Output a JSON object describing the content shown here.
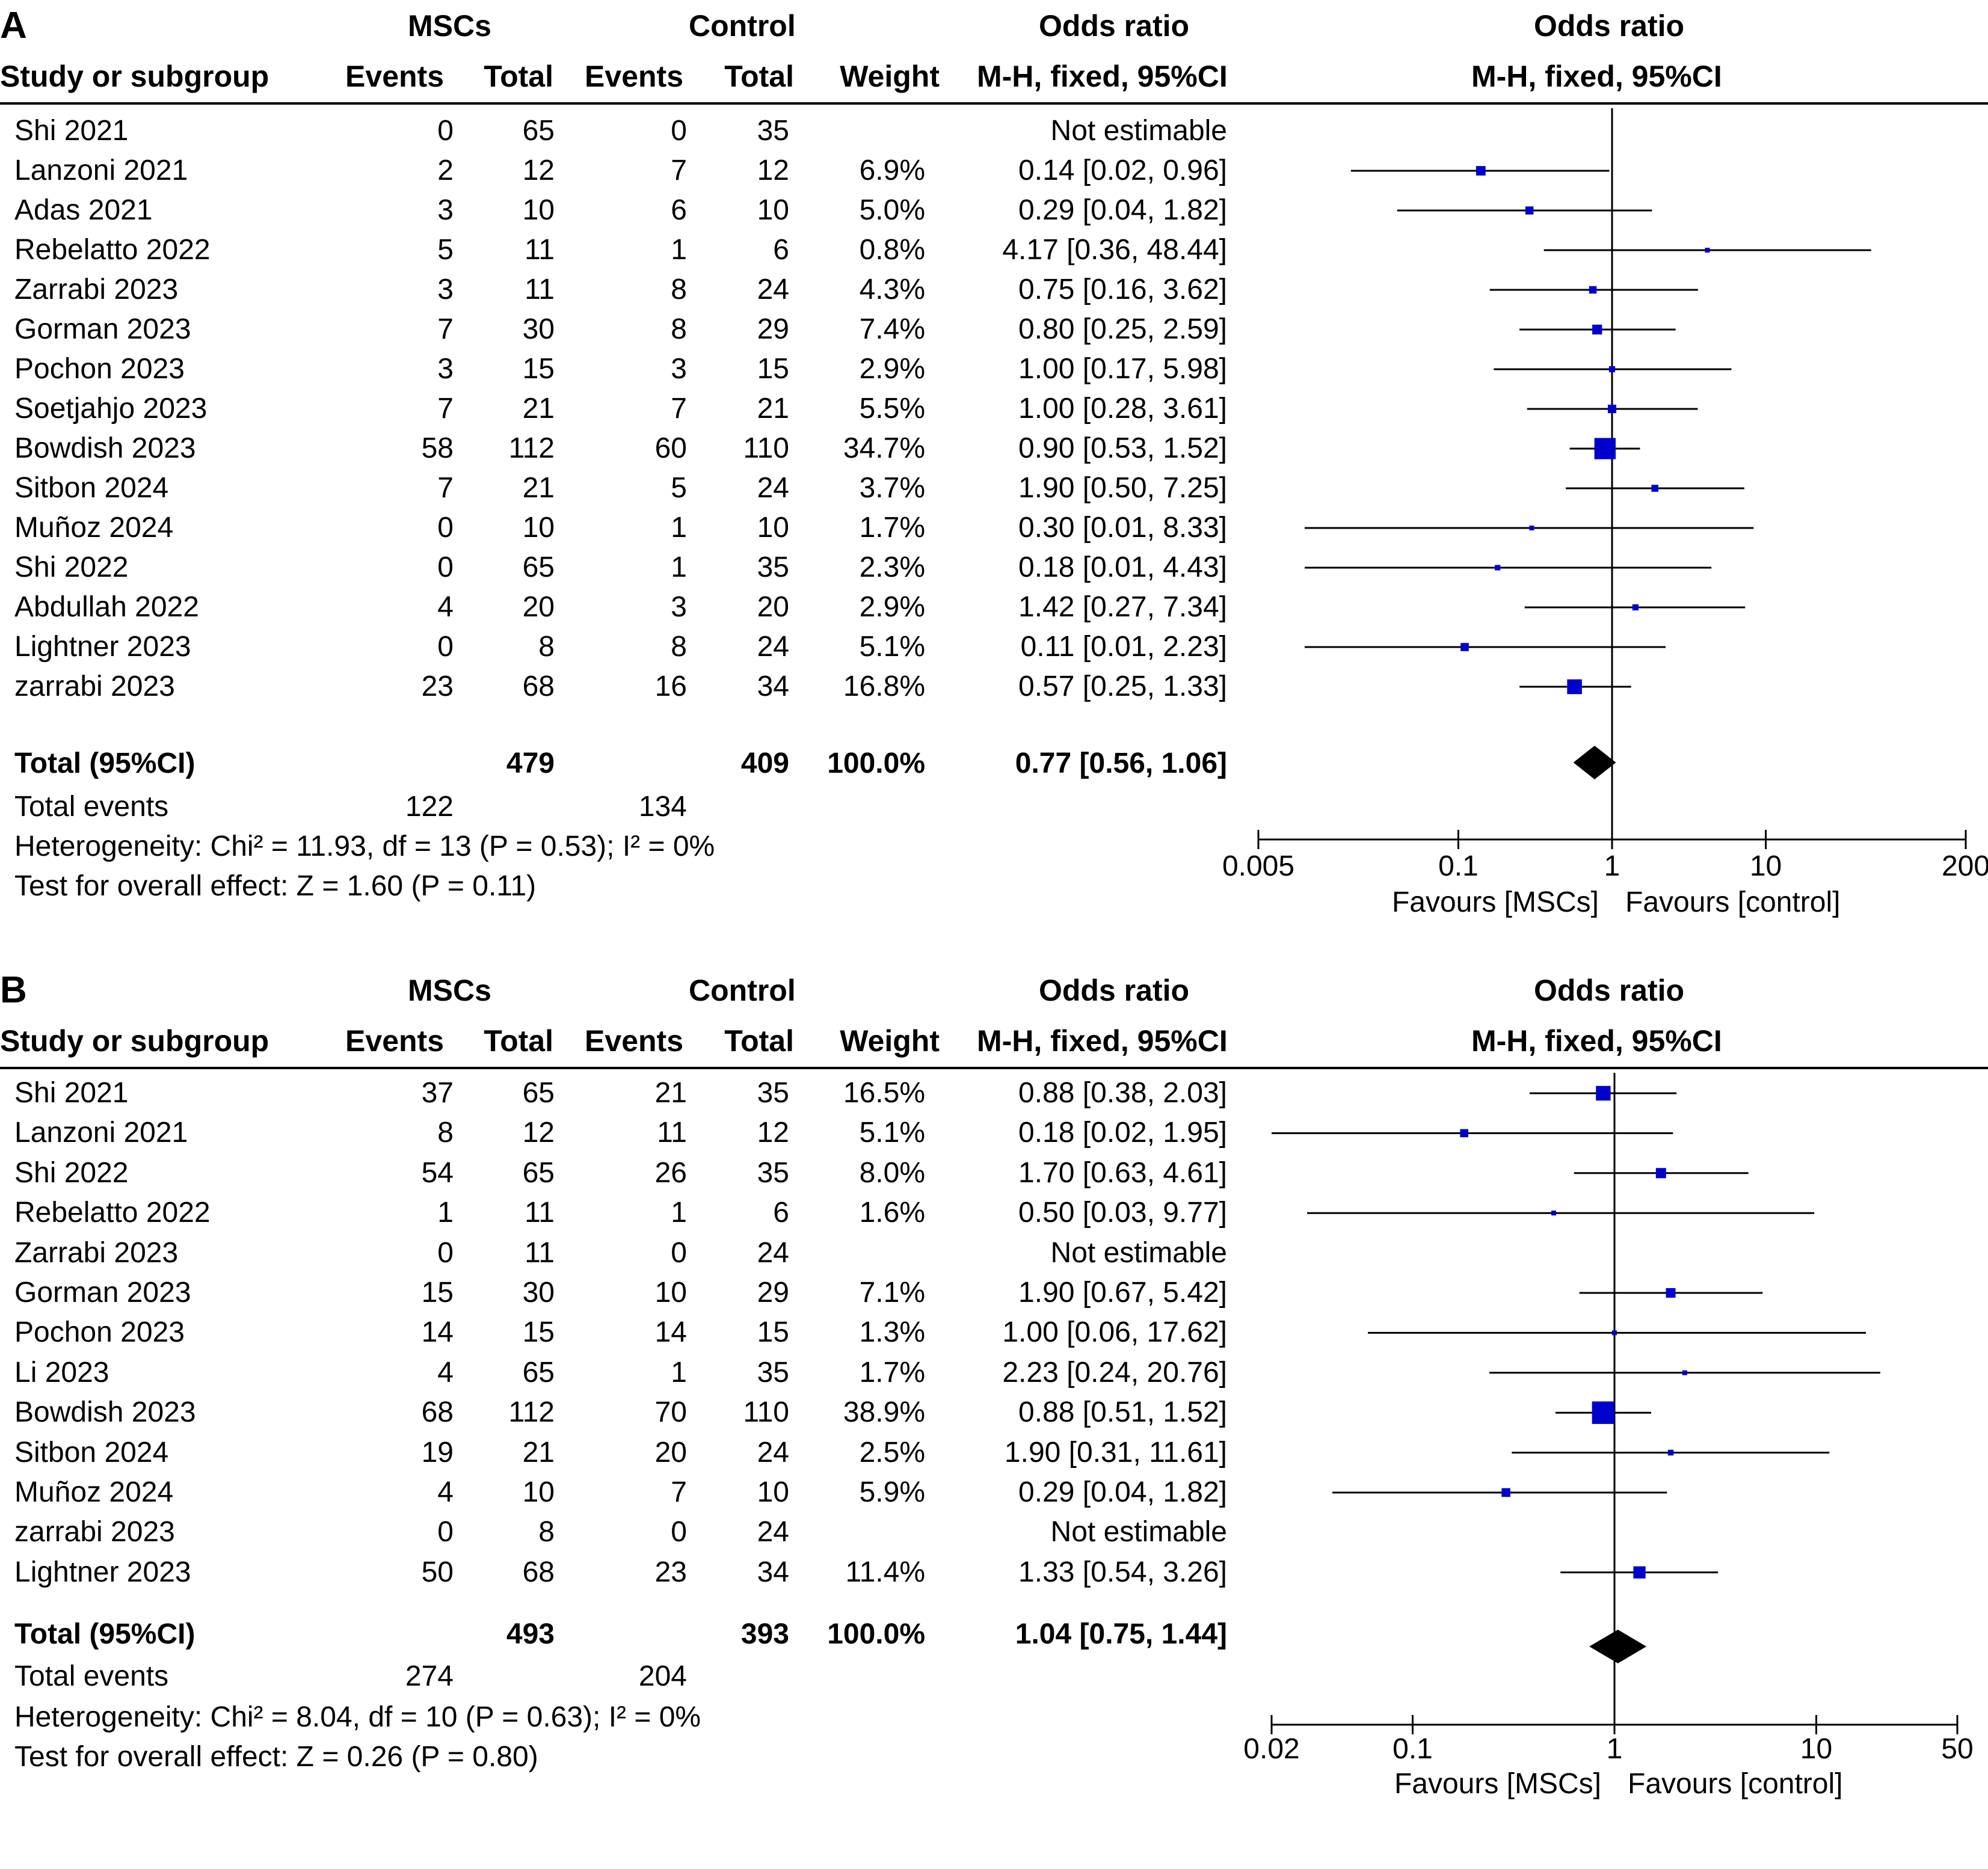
{
  "chart_data": [
    {
      "type": "forest",
      "panel_label": "A",
      "group_headers": {
        "experimental": "MSCs",
        "control": "Control",
        "estimate": "Odds ratio",
        "plot": "Odds ratio"
      },
      "column_headers": {
        "study": "Study or subgroup",
        "exp_events": "Events",
        "exp_total": "Total",
        "ctrl_events": "Events",
        "ctrl_total": "Total",
        "weight": "Weight",
        "estimate": "M-H, fixed, 95%CI",
        "plot": "M-H, fixed, 95%CI"
      },
      "rows": [
        {
          "study": "Shi 2021",
          "e_events": "0",
          "e_total": "65",
          "c_events": "0",
          "c_total": "35",
          "weight": "",
          "ci_text": "Not estimable",
          "or": null,
          "lo": null,
          "hi": null,
          "w": 0
        },
        {
          "study": "Lanzoni 2021",
          "e_events": "2",
          "e_total": "12",
          "c_events": "7",
          "c_total": "12",
          "weight": "6.9%",
          "ci_text": "0.14 [0.02, 0.96]",
          "or": 0.14,
          "lo": 0.02,
          "hi": 0.96,
          "w": 6.9
        },
        {
          "study": "Adas 2021",
          "e_events": "3",
          "e_total": "10",
          "c_events": "6",
          "c_total": "10",
          "weight": "5.0%",
          "ci_text": "0.29 [0.04, 1.82]",
          "or": 0.29,
          "lo": 0.04,
          "hi": 1.82,
          "w": 5.0
        },
        {
          "study": "Rebelatto 2022",
          "e_events": "5",
          "e_total": "11",
          "c_events": "1",
          "c_total": "6",
          "weight": "0.8%",
          "ci_text": "4.17 [0.36, 48.44]",
          "or": 4.17,
          "lo": 0.36,
          "hi": 48.44,
          "w": 0.8
        },
        {
          "study": "Zarrabi 2023",
          "e_events": "3",
          "e_total": "11",
          "c_events": "8",
          "c_total": "24",
          "weight": "4.3%",
          "ci_text": "0.75 [0.16, 3.62]",
          "or": 0.75,
          "lo": 0.16,
          "hi": 3.62,
          "w": 4.3
        },
        {
          "study": "Gorman 2023",
          "e_events": "7",
          "e_total": "30",
          "c_events": "8",
          "c_total": "29",
          "weight": "7.4%",
          "ci_text": "0.80 [0.25, 2.59]",
          "or": 0.8,
          "lo": 0.25,
          "hi": 2.59,
          "w": 7.4
        },
        {
          "study": "Pochon 2023",
          "e_events": "3",
          "e_total": "15",
          "c_events": "3",
          "c_total": "15",
          "weight": "2.9%",
          "ci_text": "1.00 [0.17, 5.98]",
          "or": 1.0,
          "lo": 0.17,
          "hi": 5.98,
          "w": 2.9
        },
        {
          "study": "Soetjahjo 2023",
          "e_events": "7",
          "e_total": "21",
          "c_events": "7",
          "c_total": "21",
          "weight": "5.5%",
          "ci_text": "1.00 [0.28, 3.61]",
          "or": 1.0,
          "lo": 0.28,
          "hi": 3.61,
          "w": 5.5
        },
        {
          "study": "Bowdish 2023",
          "e_events": "58",
          "e_total": "112",
          "c_events": "60",
          "c_total": "110",
          "weight": "34.7%",
          "ci_text": "0.90 [0.53, 1.52]",
          "or": 0.9,
          "lo": 0.53,
          "hi": 1.52,
          "w": 34.7
        },
        {
          "study": "Sitbon 2024",
          "e_events": "7",
          "e_total": "21",
          "c_events": "5",
          "c_total": "24",
          "weight": "3.7%",
          "ci_text": "1.90 [0.50, 7.25]",
          "or": 1.9,
          "lo": 0.5,
          "hi": 7.25,
          "w": 3.7
        },
        {
          "study": "Muñoz 2024",
          "e_events": "0",
          "e_total": "10",
          "c_events": "1",
          "c_total": "10",
          "weight": "1.7%",
          "ci_text": "0.30 [0.01, 8.33]",
          "or": 0.3,
          "lo": 0.01,
          "hi": 8.33,
          "w": 1.7
        },
        {
          "study": "Shi 2022",
          "e_events": "0",
          "e_total": "65",
          "c_events": "1",
          "c_total": "35",
          "weight": "2.3%",
          "ci_text": "0.18 [0.01, 4.43]",
          "or": 0.18,
          "lo": 0.01,
          "hi": 4.43,
          "w": 2.3
        },
        {
          "study": "Abdullah 2022",
          "e_events": "4",
          "e_total": "20",
          "c_events": "3",
          "c_total": "20",
          "weight": "2.9%",
          "ci_text": "1.42 [0.27, 7.34]",
          "or": 1.42,
          "lo": 0.27,
          "hi": 7.34,
          "w": 2.9
        },
        {
          "study": "Lightner 2023",
          "e_events": "0",
          "e_total": "8",
          "c_events": "8",
          "c_total": "24",
          "weight": "5.1%",
          "ci_text": "0.11 [0.01, 2.23]",
          "or": 0.11,
          "lo": 0.01,
          "hi": 2.23,
          "w": 5.1
        },
        {
          "study": "zarrabi 2023",
          "e_events": "23",
          "e_total": "68",
          "c_events": "16",
          "c_total": "34",
          "weight": "16.8%",
          "ci_text": "0.57 [0.25, 1.33]",
          "or": 0.57,
          "lo": 0.25,
          "hi": 1.33,
          "w": 16.8
        }
      ],
      "total": {
        "label": "Total (95%CI)",
        "e_total": "479",
        "c_total": "409",
        "weight": "100.0%",
        "ci_text": "0.77 [0.56, 1.06]",
        "or": 0.77,
        "lo": 0.56,
        "hi": 1.06
      },
      "total_events": {
        "label": "Total events",
        "e": "122",
        "c": "134"
      },
      "heterogeneity": "Heterogeneity: Chi² = 11.93, df = 13 (P = 0.53); I² = 0%",
      "overall_effect": "Test for overall effect: Z = 1.60 (P = 0.11)",
      "axis": {
        "ticks": [
          0.005,
          0.1,
          1,
          10,
          200
        ],
        "tick_labels": [
          "0.005",
          "0.1",
          "1",
          "10",
          "200"
        ],
        "xlim": [
          0.005,
          200
        ],
        "scale": "log"
      },
      "favours_left": "Favours [MSCs]",
      "favours_right": "Favours [control]"
    },
    {
      "type": "forest",
      "panel_label": "B",
      "group_headers": {
        "experimental": "MSCs",
        "control": "Control",
        "estimate": "Odds ratio",
        "plot": "Odds ratio"
      },
      "column_headers": {
        "study": "Study or subgroup",
        "exp_events": "Events",
        "exp_total": "Total",
        "ctrl_events": "Events",
        "ctrl_total": "Total",
        "weight": "Weight",
        "estimate": "M-H, fixed, 95%CI",
        "plot": "M-H, fixed, 95%CI"
      },
      "rows": [
        {
          "study": "Shi 2021",
          "e_events": "37",
          "e_total": "65",
          "c_events": "21",
          "c_total": "35",
          "weight": "16.5%",
          "ci_text": "0.88 [0.38, 2.03]",
          "or": 0.88,
          "lo": 0.38,
          "hi": 2.03,
          "w": 16.5
        },
        {
          "study": "Lanzoni 2021",
          "e_events": "8",
          "e_total": "12",
          "c_events": "11",
          "c_total": "12",
          "weight": "5.1%",
          "ci_text": "0.18 [0.02, 1.95]",
          "or": 0.18,
          "lo": 0.02,
          "hi": 1.95,
          "w": 5.1
        },
        {
          "study": "Shi 2022",
          "e_events": "54",
          "e_total": "65",
          "c_events": "26",
          "c_total": "35",
          "weight": "8.0%",
          "ci_text": "1.70 [0.63, 4.61]",
          "or": 1.7,
          "lo": 0.63,
          "hi": 4.61,
          "w": 8.0
        },
        {
          "study": "Rebelatto 2022",
          "e_events": "1",
          "e_total": "11",
          "c_events": "1",
          "c_total": "6",
          "weight": "1.6%",
          "ci_text": "0.50 [0.03, 9.77]",
          "or": 0.5,
          "lo": 0.03,
          "hi": 9.77,
          "w": 1.6
        },
        {
          "study": "Zarrabi 2023",
          "e_events": "0",
          "e_total": "11",
          "c_events": "0",
          "c_total": "24",
          "weight": "",
          "ci_text": "Not estimable",
          "or": null,
          "lo": null,
          "hi": null,
          "w": 0
        },
        {
          "study": "Gorman 2023",
          "e_events": "15",
          "e_total": "30",
          "c_events": "10",
          "c_total": "29",
          "weight": "7.1%",
          "ci_text": "1.90 [0.67, 5.42]",
          "or": 1.9,
          "lo": 0.67,
          "hi": 5.42,
          "w": 7.1
        },
        {
          "study": "Pochon 2023",
          "e_events": "14",
          "e_total": "15",
          "c_events": "14",
          "c_total": "15",
          "weight": "1.3%",
          "ci_text": "1.00 [0.06, 17.62]",
          "or": 1.0,
          "lo": 0.06,
          "hi": 17.62,
          "w": 1.3
        },
        {
          "study": "Li 2023",
          "e_events": "4",
          "e_total": "65",
          "c_events": "1",
          "c_total": "35",
          "weight": "1.7%",
          "ci_text": "2.23 [0.24, 20.76]",
          "or": 2.23,
          "lo": 0.24,
          "hi": 20.76,
          "w": 1.7
        },
        {
          "study": "Bowdish 2023",
          "e_events": "68",
          "e_total": "112",
          "c_events": "70",
          "c_total": "110",
          "weight": "38.9%",
          "ci_text": "0.88 [0.51, 1.52]",
          "or": 0.88,
          "lo": 0.51,
          "hi": 1.52,
          "w": 38.9
        },
        {
          "study": "Sitbon 2024",
          "e_events": "19",
          "e_total": "21",
          "c_events": "20",
          "c_total": "24",
          "weight": "2.5%",
          "ci_text": "1.90 [0.31, 11.61]",
          "or": 1.9,
          "lo": 0.31,
          "hi": 11.61,
          "w": 2.5
        },
        {
          "study": "Muñoz 2024",
          "e_events": "4",
          "e_total": "10",
          "c_events": "7",
          "c_total": "10",
          "weight": "5.9%",
          "ci_text": "0.29 [0.04, 1.82]",
          "or": 0.29,
          "lo": 0.04,
          "hi": 1.82,
          "w": 5.9
        },
        {
          "study": "zarrabi 2023",
          "e_events": "0",
          "e_total": "8",
          "c_events": "0",
          "c_total": "24",
          "weight": "",
          "ci_text": "Not estimable",
          "or": null,
          "lo": null,
          "hi": null,
          "w": 0
        },
        {
          "study": "Lightner 2023",
          "e_events": "50",
          "e_total": "68",
          "c_events": "23",
          "c_total": "34",
          "weight": "11.4%",
          "ci_text": "1.33 [0.54, 3.26]",
          "or": 1.33,
          "lo": 0.54,
          "hi": 3.26,
          "w": 11.4
        }
      ],
      "total": {
        "label": "Total (95%CI)",
        "e_total": "493",
        "c_total": "393",
        "weight": "100.0%",
        "ci_text": "1.04 [0.75, 1.44]",
        "or": 1.04,
        "lo": 0.75,
        "hi": 1.44
      },
      "total_events": {
        "label": "Total events",
        "e": "274",
        "c": "204"
      },
      "heterogeneity": "Heterogeneity: Chi² = 8.04, df = 10 (P = 0.63); I² = 0%",
      "overall_effect": "Test for overall effect: Z = 0.26 (P = 0.80)",
      "axis": {
        "ticks": [
          0.02,
          0.1,
          1,
          10,
          50
        ],
        "tick_labels": [
          "0.02",
          "0.1",
          "1",
          "10",
          "50"
        ],
        "xlim": [
          0.02,
          50
        ],
        "scale": "log"
      },
      "favours_left": "Favours [MSCs]",
      "favours_right": "Favours [control]"
    }
  ],
  "colors": {
    "marker": "#0000cc",
    "line": "#000000",
    "diamond": "#000000"
  }
}
